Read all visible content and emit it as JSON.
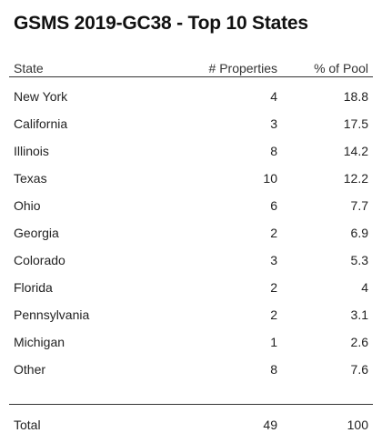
{
  "title": "GSMS 2019-GC38 - Top 10 States",
  "table": {
    "columns": [
      "State",
      "# Properties",
      "% of Pool"
    ],
    "rows": [
      {
        "state": "New York",
        "properties": "4",
        "pool": "18.8"
      },
      {
        "state": "California",
        "properties": "3",
        "pool": "17.5"
      },
      {
        "state": "Illinois",
        "properties": "8",
        "pool": "14.2"
      },
      {
        "state": "Texas",
        "properties": "10",
        "pool": "12.2"
      },
      {
        "state": "Ohio",
        "properties": "6",
        "pool": "7.7"
      },
      {
        "state": "Georgia",
        "properties": "2",
        "pool": "6.9"
      },
      {
        "state": "Colorado",
        "properties": "3",
        "pool": "5.3"
      },
      {
        "state": "Florida",
        "properties": "2",
        "pool": "4"
      },
      {
        "state": "Pennsylvania",
        "properties": "2",
        "pool": "3.1"
      },
      {
        "state": "Michigan",
        "properties": "1",
        "pool": "2.6"
      },
      {
        "state": "Other",
        "properties": "8",
        "pool": "7.6"
      }
    ],
    "total": {
      "label": "Total",
      "properties": "49",
      "pool": "100"
    }
  }
}
